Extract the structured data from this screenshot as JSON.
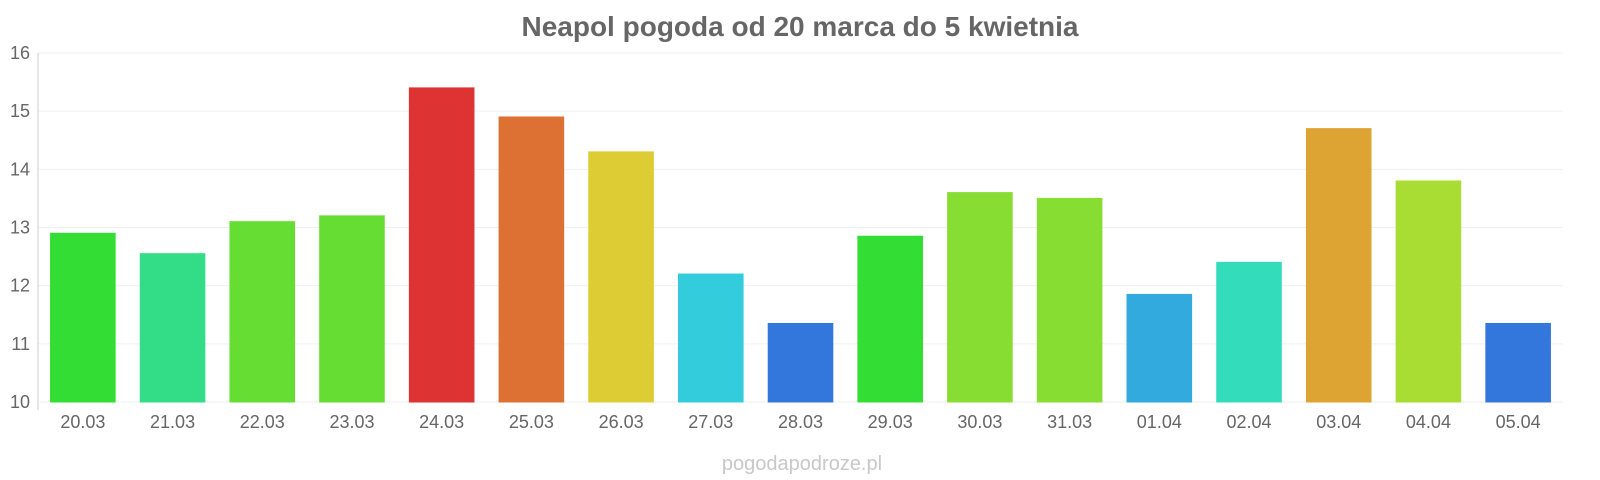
{
  "chart_data": {
    "type": "bar",
    "title": "Neapol pogoda od 20 marca do 5 kwietnia",
    "categories": [
      "20.03",
      "21.03",
      "22.03",
      "23.03",
      "24.03",
      "25.03",
      "26.03",
      "27.03",
      "28.03",
      "29.03",
      "30.03",
      "31.03",
      "01.04",
      "02.04",
      "03.04",
      "04.04",
      "05.04"
    ],
    "values": [
      12.9,
      12.55,
      13.1,
      13.2,
      15.4,
      14.9,
      14.3,
      12.2,
      11.35,
      12.85,
      13.6,
      13.5,
      11.85,
      12.4,
      14.7,
      13.8,
      11.35
    ],
    "colors": [
      "#33dd33",
      "#33dd88",
      "#66dd33",
      "#66dd33",
      "#dd3333",
      "#dd7033",
      "#ddcc33",
      "#33ccdd",
      "#3377dd",
      "#33dd33",
      "#88dd33",
      "#88dd33",
      "#33aadd",
      "#33ddbb",
      "#dda333",
      "#aadd33",
      "#3377dd"
    ],
    "ylim": [
      10,
      16
    ],
    "yticks": [
      10,
      11,
      12,
      13,
      14,
      15,
      16
    ],
    "grid": true,
    "xlabel": "",
    "ylabel": ""
  },
  "watermark": "pogodapodroze.pl"
}
